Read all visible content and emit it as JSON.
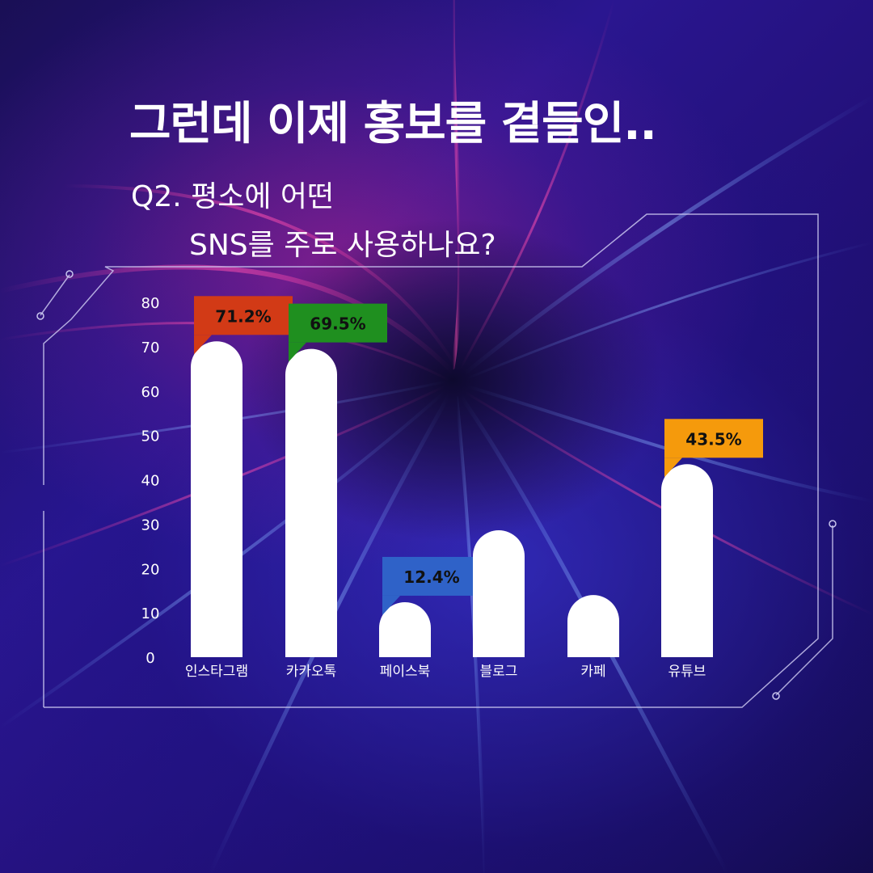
{
  "header": {
    "title": "그런데 이제 홍보를 곁들인..",
    "question_line1": "Q2. 평소에 어떤",
    "question_line2": "SNS를 주로 사용하나요?"
  },
  "colors": {
    "bar": "#ffffff",
    "label_instagram": "#d23a16",
    "label_kakaotalk": "#1f8f1f",
    "label_facebook": "#2f62c8",
    "label_youtube": "#f59a0c"
  },
  "chart_data": {
    "type": "bar",
    "title": "",
    "xlabel": "",
    "ylabel": "",
    "ylim": [
      0,
      80
    ],
    "yticks": [
      0,
      10,
      20,
      30,
      40,
      50,
      60,
      70,
      80
    ],
    "categories": [
      "인스타그램",
      "카카오톡",
      "페이스북",
      "블로그",
      "카페",
      "유튜브"
    ],
    "values": [
      71.2,
      69.5,
      12.4,
      28.6,
      14.0,
      43.5
    ],
    "data_labels": [
      "71.2%",
      "69.5%",
      "12.4%",
      null,
      null,
      "43.5%"
    ],
    "label_colors": [
      "#d23a16",
      "#1f8f1f",
      "#2f62c8",
      null,
      null,
      "#f59a0c"
    ],
    "grid": false,
    "legend": "none"
  }
}
